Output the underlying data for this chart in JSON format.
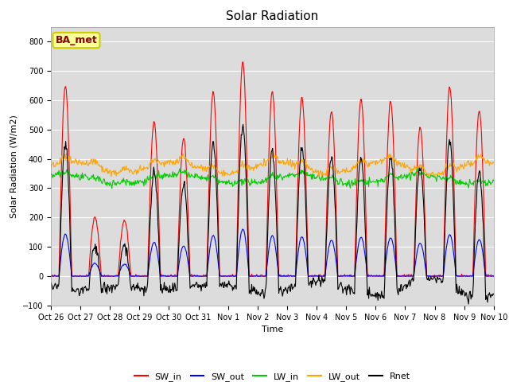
{
  "title": "Solar Radiation",
  "ylabel": "Solar Radiation (W/m2)",
  "xlabel": "Time",
  "ylim": [
    -100,
    850
  ],
  "yticks": [
    -100,
    0,
    100,
    200,
    300,
    400,
    500,
    600,
    700,
    800
  ],
  "x_tick_labels": [
    "Oct 26",
    "Oct 27",
    "Oct 28",
    "Oct 29",
    "Oct 30",
    "Oct 31",
    "Nov 1",
    "Nov 2",
    "Nov 3",
    "Nov 4",
    "Nov 5",
    "Nov 6",
    "Nov 7",
    "Nov 8",
    "Nov 9",
    "Nov 10"
  ],
  "n_days": 15,
  "annotation": "BA_met",
  "series_colors": {
    "SW_in": "#ff0000",
    "SW_out": "#0000ff",
    "LW_in": "#00cc00",
    "LW_out": "#ffa500",
    "Rnet": "#000000"
  },
  "fig_bg_color": "#ffffff",
  "axes_bg_color": "#dcdcdc",
  "sw_in_peaks": [
    650,
    200,
    190,
    525,
    470,
    630,
    730,
    630,
    610,
    560,
    605,
    595,
    510,
    645,
    565
  ],
  "lw_in_base": 330,
  "lw_out_base": 370,
  "title_fontsize": 11,
  "tick_fontsize": 7,
  "label_fontsize": 8,
  "legend_fontsize": 8
}
